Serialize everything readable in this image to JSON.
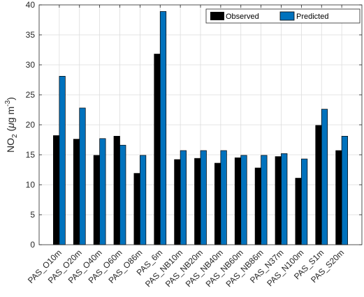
{
  "chart_data": {
    "type": "bar",
    "categories": [
      "PAS_O10m",
      "PAS_O20m",
      "PAS_O40m",
      "PAS_O60m",
      "PAS_O86m",
      "PAS_6m",
      "PAS_NB10m",
      "PAS_NB20m",
      "PAS_NB40m",
      "PAS_NB60m",
      "PAS_NB86m",
      "PAS_N37m",
      "PAS_N100m",
      "PAS_S1m",
      "PAS_S20m"
    ],
    "series": [
      {
        "name": "Observed",
        "color": "#000000",
        "values": [
          18.2,
          17.6,
          14.9,
          18.1,
          11.9,
          31.8,
          14.2,
          14.4,
          13.6,
          14.5,
          12.8,
          14.7,
          11.1,
          19.9,
          15.7
        ]
      },
      {
        "name": "Predicted",
        "color": "#0072BD",
        "values": [
          28.1,
          22.8,
          17.7,
          16.6,
          14.9,
          38.9,
          15.7,
          15.7,
          15.7,
          14.9,
          14.9,
          15.2,
          14.3,
          22.6,
          18.1
        ]
      }
    ],
    "ylabel": {
      "main": "NO",
      "sub": "2",
      "unit_open": " (",
      "mu": "μ",
      "unit_g": "g m",
      "sup": "-3",
      "unit_close": ")"
    },
    "ylim": [
      0,
      40
    ],
    "yticks": [
      0,
      5,
      10,
      15,
      20,
      25,
      30,
      35,
      40
    ],
    "grid": true,
    "legend_position": "top-right"
  }
}
